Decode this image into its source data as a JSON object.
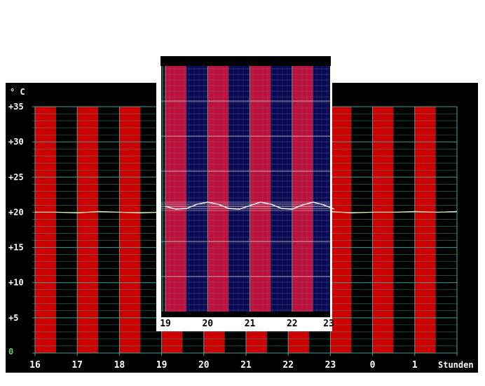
{
  "chart_data": [
    {
      "type": "line",
      "ylabel": "° C",
      "xlabel": "Stunden",
      "x_ticks": [
        "16",
        "17",
        "18",
        "19",
        "20",
        "21",
        "22",
        "23",
        "0",
        "1"
      ],
      "y_ticks": [
        "0",
        "+5",
        "+10",
        "+15",
        "+20",
        "+25",
        "+30",
        "+35"
      ],
      "y_tick_values": [
        0,
        5,
        10,
        15,
        20,
        25,
        30,
        35
      ],
      "ylim": [
        0,
        35
      ],
      "x_hours": [
        16,
        16.5,
        17,
        17.5,
        18,
        18.5,
        19,
        19.5,
        20,
        20.5,
        21,
        21.5,
        22,
        22.5,
        23,
        23.5,
        24,
        24.5,
        25,
        25.5,
        26
      ],
      "values": [
        20,
        20,
        19.9,
        20.1,
        20,
        19.9,
        20,
        20.1,
        20,
        20,
        19.9,
        20.1,
        20,
        20,
        20.1,
        19.9,
        20,
        20,
        20.1,
        20,
        20.1
      ],
      "bands": [
        "red",
        "black"
      ],
      "grid": true,
      "colors": {
        "background": "#000000",
        "band_red": "#cc0000",
        "band_dark": "#000000",
        "grid": "#3fa8a0",
        "line": "#e8e8b0",
        "tick_label": "#ffffff",
        "zero_label": "#66cc66"
      }
    },
    {
      "type": "line",
      "note_role": "zoomed inset",
      "x_ticks": [
        "19",
        "20",
        "21",
        "22",
        "23"
      ],
      "x_hours": [
        19,
        19.25,
        19.5,
        19.75,
        20,
        20.25,
        20.5,
        20.75,
        21,
        21.25,
        21.5,
        21.75,
        22,
        22.25,
        22.5,
        22.75,
        23
      ],
      "values": [
        20.0,
        19.6,
        19.7,
        20.3,
        20.6,
        20.3,
        19.7,
        19.6,
        20.1,
        20.6,
        20.3,
        19.7,
        19.6,
        20.2,
        20.6,
        20.2,
        19.6
      ],
      "bands": [
        "red",
        "navy"
      ],
      "grid": true,
      "colors": {
        "frame": "#ffffff",
        "band_red": "#c0103a",
        "band_dark": "#0a0a55",
        "grid": "#3fa8a0",
        "line": "#ffffff"
      }
    }
  ]
}
